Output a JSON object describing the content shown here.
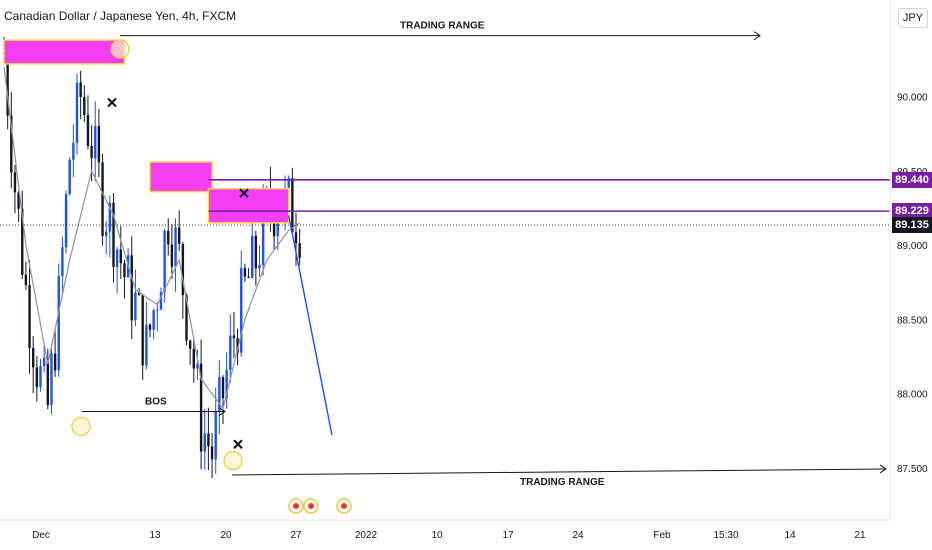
{
  "header": {
    "symbol_title": "Canadian Dollar / Japanese Yen, 4h, FXCM",
    "currency": "JPY"
  },
  "colors": {
    "candle": "#1e53e5",
    "candle_dark": "#131722",
    "ma": "#9598a1",
    "zone_fill": "#f23df2",
    "zone_border": "#ffd54f",
    "level_line": "#7b1fa2",
    "last_price": "#131722",
    "projection": "#1e53e5"
  },
  "chart_data": {
    "type": "candlestick",
    "title": "Canadian Dollar / Japanese Yen, 4h, FXCM",
    "y_axis": {
      "range": [
        87.15,
        90.65
      ],
      "ticks": [
        87.5,
        88.0,
        88.5,
        89.0,
        89.5,
        90.0
      ],
      "tick_labels": [
        "87.500",
        "88.000",
        "88.500",
        "89.000",
        "89.500",
        "90.000"
      ]
    },
    "x_axis": {
      "ticks": [
        "Dec",
        "13",
        "20",
        "27",
        "2022",
        "10",
        "17",
        "24",
        "Feb",
        "15:30",
        "14",
        "21"
      ]
    },
    "series": [
      {
        "name": "price_path",
        "x": [
          0,
          3,
          6,
          9,
          12,
          15,
          18,
          21,
          24,
          27,
          30,
          33,
          36,
          39,
          42,
          45,
          48,
          51,
          54,
          57,
          60,
          63,
          66,
          69,
          72,
          75,
          78,
          80,
          81
        ],
        "values": [
          90.3,
          89.4,
          88.7,
          88.2,
          87.9,
          88.6,
          89.6,
          90.0,
          89.7,
          89.3,
          89.1,
          88.8,
          88.6,
          88.3,
          88.7,
          89.2,
          88.9,
          88.4,
          87.8,
          87.6,
          88.0,
          88.4,
          88.7,
          88.9,
          89.2,
          89.3,
          89.25,
          89.2,
          89.15
        ]
      },
      {
        "name": "moving_average",
        "x": [
          0,
          6,
          12,
          18,
          24,
          30,
          36,
          42,
          48,
          54,
          60,
          66,
          72,
          78,
          81
        ],
        "values": [
          90.2,
          89.0,
          88.2,
          88.9,
          89.5,
          89.2,
          88.7,
          88.6,
          88.9,
          88.1,
          87.9,
          88.5,
          88.9,
          89.1,
          89.15
        ]
      }
    ],
    "price_levels": [
      {
        "label": "89.440",
        "value": 89.44
      },
      {
        "label": "89.229",
        "value": 89.229
      },
      {
        "label": "89.135",
        "value": 89.135
      }
    ],
    "annotations": [
      {
        "text": "TRADING RANGE",
        "value": 90.41
      },
      {
        "text": "TRADING RANGE",
        "value": 87.48
      },
      {
        "text": "BOS",
        "value": 87.88
      }
    ]
  }
}
